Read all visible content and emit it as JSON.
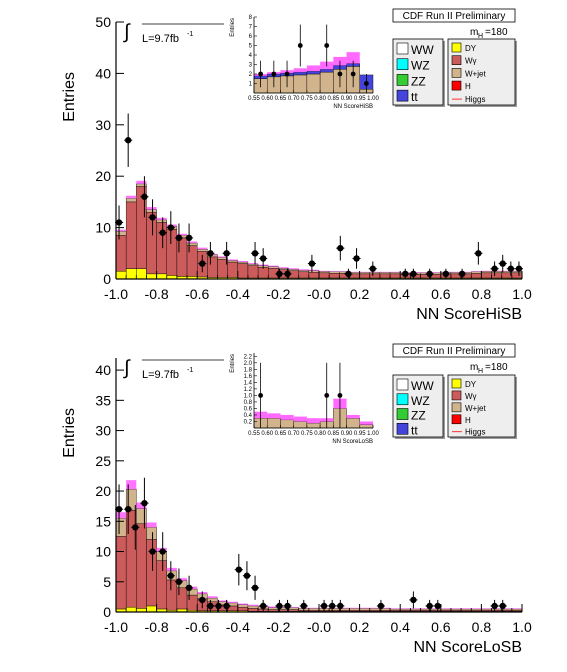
{
  "chart_data": [
    {
      "type": "histogram",
      "label": "CDF Run II Preliminary",
      "ylabel": "Entries",
      "xlabel": "NN ScoreHiSB",
      "lumi_label": "L=9.7fb",
      "lumi_sup": "-1",
      "mass_label": "m",
      "mass_sub": "H",
      "mass_value": "=180",
      "xlim": [
        -1.0,
        1.0
      ],
      "ylim": [
        0,
        50
      ],
      "x_ticks": [
        "-1.0",
        "-0.8",
        "-0.6",
        "-0.4",
        "-0.2",
        "-0.0",
        "0.2",
        "0.4",
        "0.6",
        "0.8",
        "1.0"
      ],
      "y_ticks": [
        "0",
        "10",
        "20",
        "30",
        "40",
        "50"
      ],
      "bin_edges_start": -1.0,
      "bin_width": 0.05,
      "stack": [
        {
          "name": "DY",
          "color": "#ffff00",
          "values": [
            1.5,
            2.0,
            2.0,
            1.0,
            1.0,
            0.7,
            0.5,
            0.5,
            0.4,
            0.3,
            0.3,
            0.3,
            0.2,
            0.2,
            0.2,
            0.2,
            0.2,
            0.2,
            0.2,
            0.2,
            0.2,
            0.2,
            0.2,
            0.2,
            0.2,
            0.2,
            0.2,
            0.2,
            0.2,
            0.2,
            0.2,
            0.2,
            0.2,
            0.2,
            0.2,
            0.2,
            0.2,
            0.2,
            0.2,
            0.2
          ]
        },
        {
          "name": "Wγ",
          "color": "#cc5b5b",
          "values": [
            7.0,
            13.0,
            16.0,
            12.0,
            10.0,
            9.0,
            7.5,
            6.0,
            5.0,
            4.0,
            3.5,
            3.0,
            2.8,
            2.4,
            2.1,
            1.9,
            1.6,
            1.4,
            1.2,
            1.1,
            1.0,
            0.9,
            0.9,
            0.8,
            0.8,
            0.8,
            0.8,
            0.8,
            0.7,
            0.7,
            0.7,
            0.7,
            0.8,
            0.8,
            0.8,
            0.9,
            1.0,
            1.0,
            1.0,
            1.0
          ]
        },
        {
          "name": "W+jet",
          "color": "#d2b48c",
          "values": [
            0.8,
            0.7,
            0.5,
            0.5,
            0.5,
            0.5,
            0.5,
            0.5,
            0.4,
            0.4,
            0.4,
            0.3,
            0.3,
            0.3,
            0.3,
            0.3,
            0.3,
            0.3,
            0.3,
            0.3,
            0.3,
            0.3,
            0.3,
            0.3,
            0.3,
            0.3,
            0.3,
            0.3,
            0.3,
            0.3,
            0.3,
            0.3,
            0.3,
            0.3,
            0.3,
            0.3,
            0.3,
            0.3,
            0.3,
            0.3
          ]
        }
      ],
      "higgs": [
        0.3,
        0.5,
        0.6,
        0.5,
        0.4,
        0.4,
        0.3,
        0.3,
        0.3,
        0.2,
        0.2,
        0.2,
        0.2,
        0.2,
        0.2,
        0.2,
        0.2,
        0.2,
        0.2,
        0.2,
        0.1,
        0.1,
        0.1,
        0.1,
        0.1,
        0.1,
        0.1,
        0.1,
        0.1,
        0.1,
        0.1,
        0.1,
        0.1,
        0.1,
        0.1,
        0.1,
        0.1,
        0.1,
        0.1,
        0.1
      ],
      "data_points": [
        {
          "x": -0.985,
          "y": 11,
          "err": 3.3
        },
        {
          "x": -0.94,
          "y": 27,
          "err": 5.2
        },
        {
          "x": -0.86,
          "y": 16,
          "err": 4.0
        },
        {
          "x": -0.82,
          "y": 12,
          "err": 3.5
        },
        {
          "x": -0.77,
          "y": 9,
          "err": 3.0
        },
        {
          "x": -0.73,
          "y": 10,
          "err": 3.2
        },
        {
          "x": -0.69,
          "y": 8,
          "err": 2.8
        },
        {
          "x": -0.64,
          "y": 8,
          "err": 2.8
        },
        {
          "x": -0.575,
          "y": 3,
          "err": 1.7
        },
        {
          "x": -0.535,
          "y": 5,
          "err": 2.2
        },
        {
          "x": -0.455,
          "y": 5,
          "err": 2.2
        },
        {
          "x": -0.315,
          "y": 5,
          "err": 2.2
        },
        {
          "x": -0.275,
          "y": 4,
          "err": 2.0
        },
        {
          "x": -0.195,
          "y": 1,
          "err": 1.0
        },
        {
          "x": -0.155,
          "y": 1,
          "err": 1.0
        },
        {
          "x": -0.035,
          "y": 3,
          "err": 1.7
        },
        {
          "x": 0.105,
          "y": 6,
          "err": 2.4
        },
        {
          "x": 0.145,
          "y": 1,
          "err": 1.0
        },
        {
          "x": 0.185,
          "y": 4,
          "err": 2.0
        },
        {
          "x": 0.265,
          "y": 2,
          "err": 1.4
        },
        {
          "x": 0.425,
          "y": 1,
          "err": 1.0
        },
        {
          "x": 0.465,
          "y": 1,
          "err": 1.0
        },
        {
          "x": 0.545,
          "y": 1,
          "err": 1.0
        },
        {
          "x": 0.625,
          "y": 1,
          "err": 1.0
        },
        {
          "x": 0.705,
          "y": 1,
          "err": 1.0
        },
        {
          "x": 0.785,
          "y": 5,
          "err": 2.2
        },
        {
          "x": 0.865,
          "y": 2,
          "err": 1.4
        },
        {
          "x": 0.905,
          "y": 3,
          "err": 1.7
        },
        {
          "x": 0.945,
          "y": 2,
          "err": 1.4
        },
        {
          "x": 0.985,
          "y": 2,
          "err": 1.4
        }
      ],
      "legend_left": [
        {
          "name": "WW",
          "color": "#ffffff"
        },
        {
          "name": "WZ",
          "color": "#00ffff"
        },
        {
          "name": "ZZ",
          "color": "#33cc33"
        },
        {
          "name": "tt",
          "color": "#4444dd"
        }
      ],
      "legend_right": [
        {
          "name": "DY",
          "color": "#ffff00",
          "kind": "box"
        },
        {
          "name": "Wγ",
          "color": "#cc5b5b",
          "kind": "box"
        },
        {
          "name": "W+jet",
          "color": "#d2b48c",
          "kind": "box"
        },
        {
          "name": "H",
          "color": "#ff0000",
          "kind": "box"
        },
        {
          "name": "Higgs",
          "color": "#ff3333",
          "kind": "line"
        }
      ],
      "inset": {
        "ylabel": "Entries",
        "xlabel": "NN ScoreHiSB",
        "xlim": [
          0.55,
          1.0
        ],
        "ylim": [
          0,
          8
        ],
        "x_ticks": [
          "0.55",
          "0.60",
          "0.65",
          "0.70",
          "0.75",
          "0.80",
          "0.85",
          "0.90",
          "0.95",
          "1.00"
        ],
        "y_ticks": [
          "1",
          "2",
          "3",
          "4",
          "5",
          "6",
          "7",
          "8"
        ],
        "bin_width": 0.05,
        "stack": [
          {
            "name": "bkg",
            "color": "#d2b48c",
            "values": [
              1.5,
              1.7,
              1.8,
              1.9,
              2.0,
              2.2,
              2.5,
              2.8,
              0.4
            ]
          },
          {
            "name": "top",
            "color": "#4444dd",
            "values": [
              0.3,
              0.3,
              0.3,
              0.3,
              0.3,
              0.3,
              0.4,
              0.3,
              1.5
            ]
          }
        ],
        "higgs_top": [
          2.0,
          2.2,
          2.4,
          2.6,
          2.9,
          3.3,
          3.8,
          4.3,
          0.8
        ],
        "data_points": [
          {
            "x": 0.575,
            "y": 2,
            "err": 1.4
          },
          {
            "x": 0.625,
            "y": 2,
            "err": 1.4
          },
          {
            "x": 0.675,
            "y": 2,
            "err": 1.4
          },
          {
            "x": 0.725,
            "y": 5,
            "err": 2.2
          },
          {
            "x": 0.825,
            "y": 5,
            "err": 2.2
          },
          {
            "x": 0.875,
            "y": 2,
            "err": 1.4
          },
          {
            "x": 0.925,
            "y": 2,
            "err": 1.4
          },
          {
            "x": 0.975,
            "y": 1,
            "err": 1.0
          }
        ]
      }
    },
    {
      "type": "histogram",
      "label": "CDF Run II Preliminary",
      "ylabel": "Entries",
      "xlabel": "NN ScoreLoSB",
      "lumi_label": "L=9.7fb",
      "lumi_sup": "-1",
      "mass_label": "m",
      "mass_sub": "H",
      "mass_value": "=180",
      "xlim": [
        -1.0,
        1.0
      ],
      "ylim": [
        0,
        42
      ],
      "x_ticks": [
        "-1.0",
        "-0.8",
        "-0.6",
        "-0.4",
        "-0.2",
        "-0.0",
        "0.2",
        "0.4",
        "0.6",
        "0.8",
        "1.0"
      ],
      "y_ticks": [
        "0",
        "5",
        "10",
        "15",
        "20",
        "25",
        "30",
        "35",
        "40"
      ],
      "bin_edges_start": -1.0,
      "bin_width": 0.05,
      "stack": [
        {
          "name": "DY",
          "color": "#ffff00",
          "values": [
            0.5,
            0.8,
            0.6,
            1.0,
            0.5,
            0.3,
            0.5,
            0.3,
            0.2,
            0.2,
            0.2,
            0.2,
            0.2,
            0.1,
            0.1,
            0.1,
            0.1,
            0.1,
            0.1,
            0.1,
            0.1,
            0.1,
            0.1,
            0.1,
            0.1,
            0.1,
            0.1,
            0.1,
            0.1,
            0.1,
            0.1,
            0.1,
            0.1,
            0.1,
            0.1,
            0.1,
            0.1,
            0.1,
            0.1,
            0.1
          ]
        },
        {
          "name": "Wγ",
          "color": "#cc5b5b",
          "values": [
            12.0,
            16.0,
            14.0,
            11.0,
            8.0,
            5.0,
            3.5,
            2.5,
            2.0,
            1.5,
            1.0,
            0.8,
            0.6,
            0.5,
            0.4,
            0.3,
            0.3,
            0.3,
            0.2,
            0.2,
            0.2,
            0.2,
            0.2,
            0.2,
            0.2,
            0.2,
            0.2,
            0.2,
            0.2,
            0.2,
            0.2,
            0.2,
            0.2,
            0.2,
            0.2,
            0.2,
            0.2,
            0.2,
            0.2,
            0.2
          ]
        },
        {
          "name": "W+jet",
          "color": "#d2b48c",
          "values": [
            3.0,
            3.5,
            2.5,
            2.0,
            1.5,
            1.5,
            1.2,
            1.0,
            0.8,
            0.6,
            0.5,
            0.5,
            0.4,
            0.4,
            0.4,
            0.3,
            0.3,
            0.3,
            0.3,
            0.3,
            0.3,
            0.3,
            0.3,
            0.3,
            0.3,
            0.3,
            0.3,
            0.2,
            0.2,
            0.2,
            0.2,
            0.2,
            0.2,
            0.2,
            0.2,
            0.2,
            0.2,
            0.2,
            0.2,
            0.2
          ]
        }
      ],
      "higgs": [
        1.0,
        1.5,
        1.0,
        0.8,
        0.6,
        0.5,
        0.4,
        0.4,
        0.3,
        0.3,
        0.2,
        0.2,
        0.2,
        0.2,
        0.2,
        0.2,
        0.1,
        0.1,
        0.1,
        0.1,
        0.1,
        0.1,
        0.1,
        0.1,
        0.1,
        0.1,
        0.1,
        0.1,
        0.1,
        0.1,
        0.1,
        0.1,
        0.1,
        0.1,
        0.1,
        0.1,
        0.1,
        0.1,
        0.1,
        0.1
      ],
      "data_points": [
        {
          "x": -0.985,
          "y": 17,
          "err": 4.1
        },
        {
          "x": -0.94,
          "y": 17,
          "err": 4.1
        },
        {
          "x": -0.905,
          "y": 14,
          "err": 3.7
        },
        {
          "x": -0.86,
          "y": 18,
          "err": 4.2
        },
        {
          "x": -0.82,
          "y": 10,
          "err": 3.2
        },
        {
          "x": -0.77,
          "y": 10,
          "err": 3.2
        },
        {
          "x": -0.73,
          "y": 6,
          "err": 2.4
        },
        {
          "x": -0.69,
          "y": 5,
          "err": 2.2
        },
        {
          "x": -0.64,
          "y": 4,
          "err": 2.0
        },
        {
          "x": -0.575,
          "y": 2,
          "err": 1.4
        },
        {
          "x": -0.535,
          "y": 1,
          "err": 1.0
        },
        {
          "x": -0.495,
          "y": 1,
          "err": 1.0
        },
        {
          "x": -0.455,
          "y": 1,
          "err": 1.0
        },
        {
          "x": -0.395,
          "y": 7,
          "err": 2.6
        },
        {
          "x": -0.355,
          "y": 6,
          "err": 2.4
        },
        {
          "x": -0.315,
          "y": 4,
          "err": 2.0
        },
        {
          "x": -0.275,
          "y": 1,
          "err": 1.0
        },
        {
          "x": -0.195,
          "y": 1,
          "err": 1.0
        },
        {
          "x": -0.155,
          "y": 1,
          "err": 1.0
        },
        {
          "x": -0.075,
          "y": 1,
          "err": 1.0
        },
        {
          "x": 0.025,
          "y": 1,
          "err": 1.0
        },
        {
          "x": 0.065,
          "y": 1,
          "err": 1.0
        },
        {
          "x": 0.105,
          "y": 1,
          "err": 1.0
        },
        {
          "x": 0.305,
          "y": 1,
          "err": 1.0
        },
        {
          "x": 0.465,
          "y": 2,
          "err": 1.4
        },
        {
          "x": 0.545,
          "y": 1,
          "err": 1.0
        },
        {
          "x": 0.585,
          "y": 1,
          "err": 1.0
        },
        {
          "x": 0.865,
          "y": 1,
          "err": 1.0
        },
        {
          "x": 0.905,
          "y": 1,
          "err": 1.0
        }
      ],
      "legend_left": [
        {
          "name": "WW",
          "color": "#ffffff"
        },
        {
          "name": "WZ",
          "color": "#00ffff"
        },
        {
          "name": "ZZ",
          "color": "#33cc33"
        },
        {
          "name": "tt",
          "color": "#4444dd"
        }
      ],
      "legend_right": [
        {
          "name": "DY",
          "color": "#ffff00",
          "kind": "box"
        },
        {
          "name": "Wγ",
          "color": "#cc5b5b",
          "kind": "box"
        },
        {
          "name": "W+jet",
          "color": "#d2b48c",
          "kind": "box"
        },
        {
          "name": "H",
          "color": "#ff0000",
          "kind": "box"
        },
        {
          "name": "Higgs",
          "color": "#ff3333",
          "kind": "line"
        }
      ],
      "inset": {
        "ylabel": "Entries",
        "xlabel": "NN ScoreLoSB",
        "xlim": [
          0.55,
          1.0
        ],
        "ylim": [
          0,
          2.3
        ],
        "x_ticks": [
          "0.55",
          "0.60",
          "0.65",
          "0.70",
          "0.75",
          "0.80",
          "0.85",
          "0.90",
          "0.95",
          "1.00"
        ],
        "y_ticks": [
          "0.2",
          "0.4",
          "0.6",
          "0.8",
          "1.0",
          "1.2",
          "1.4",
          "1.6",
          "1.8",
          "2.0",
          "2.2"
        ],
        "bin_width": 0.05,
        "stack": [
          {
            "name": "bkg",
            "color": "#d2b48c",
            "values": [
              0.3,
              0.3,
              0.25,
              0.2,
              0.15,
              0.2,
              0.6,
              0.3,
              0.1
            ]
          },
          {
            "name": "top",
            "color": "#4444dd",
            "values": [
              0.0,
              0.0,
              0.0,
              0.0,
              0.0,
              0.0,
              0.0,
              0.0,
              0.0
            ]
          }
        ],
        "higgs_top": [
          0.5,
          0.45,
          0.4,
          0.35,
          0.3,
          0.3,
          0.9,
          0.4,
          0.2
        ],
        "data_points": [
          {
            "x": 0.575,
            "y": 1,
            "err": 1.0
          },
          {
            "x": 0.825,
            "y": 1,
            "err": 1.0
          },
          {
            "x": 0.875,
            "y": 1,
            "err": 1.0
          }
        ]
      }
    }
  ]
}
